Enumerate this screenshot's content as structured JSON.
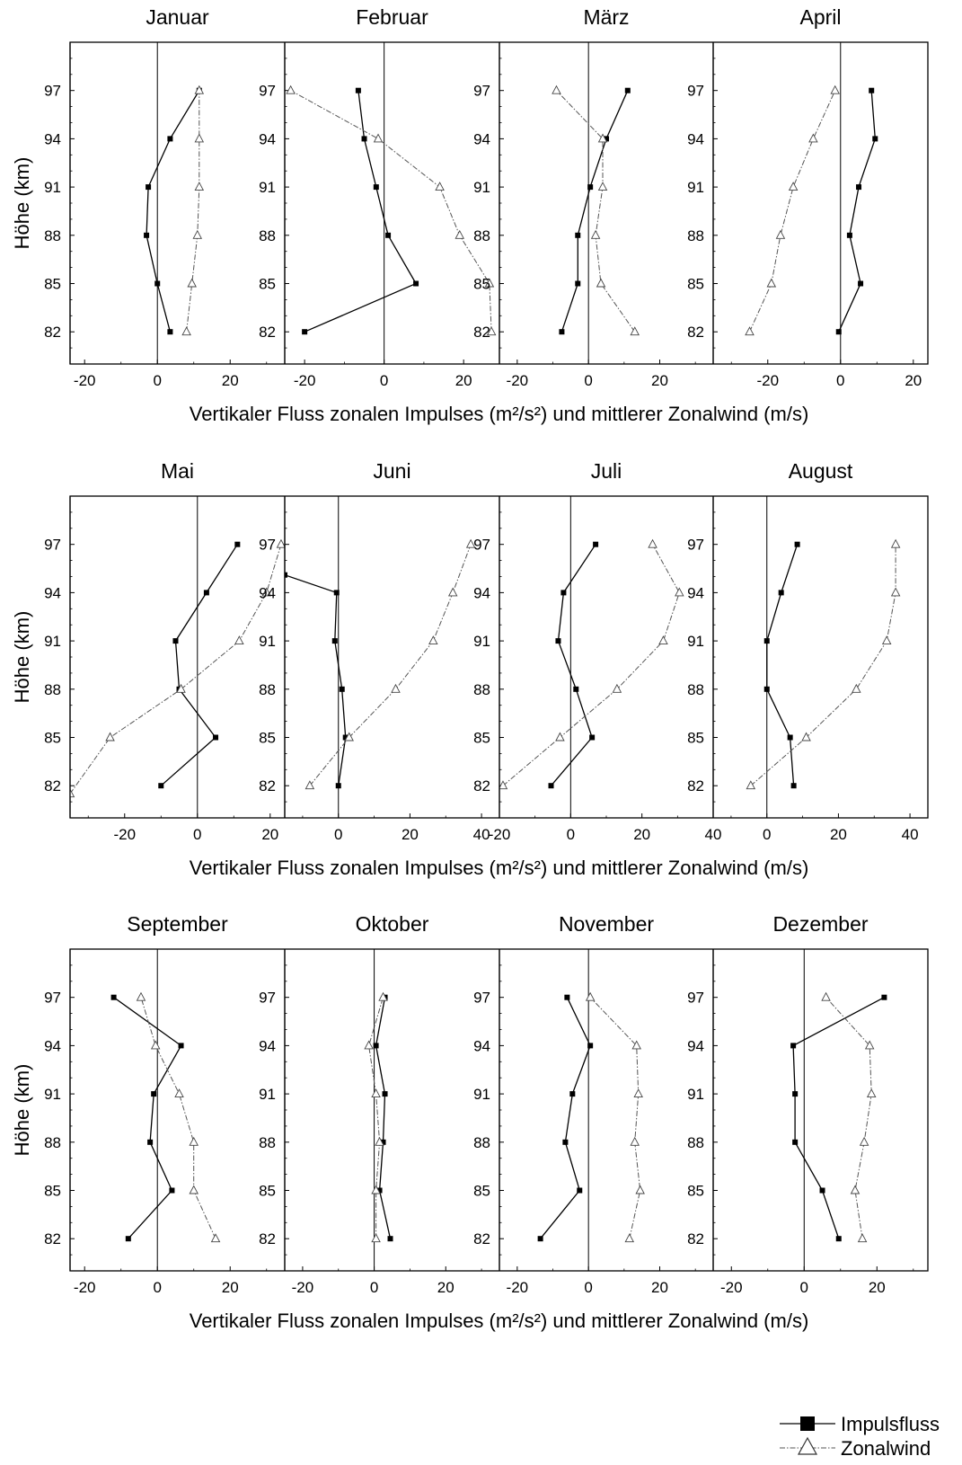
{
  "figure": {
    "legend": {
      "placement": "bottom-right",
      "entries": [
        {
          "name": "Impulsfluss",
          "marker": "filled-square",
          "line": "solid"
        },
        {
          "name": "Zonalwind",
          "marker": "open-triangle",
          "line": "dash-dot"
        }
      ]
    }
  },
  "rows": [
    {
      "xlabel": "Vertikaler Fluss zonalen Impulses (m²/s²) und mittlerer Zonalwind (m/s)",
      "ylabel": "Höhe (km)"
    },
    {
      "xlabel": "Vertikaler Fluss zonalen Impulses (m²/s²) und mittlerer Zonalwind (m/s)",
      "ylabel": "Höhe (km)"
    },
    {
      "xlabel": "Vertikaler Fluss zonalen Impulses (m²/s²) und mittlerer Zonalwind (m/s)",
      "ylabel": "Höhe (km)"
    }
  ],
  "chart_data": [
    {
      "type": "line",
      "title": "Januar",
      "row": 0,
      "col": 0,
      "xlim": [
        -24,
        35
      ],
      "ylim": [
        80,
        100
      ],
      "xticks": [
        -20,
        0,
        20
      ],
      "yticks": [
        82,
        85,
        88,
        91,
        94,
        97
      ],
      "grid": false,
      "series": [
        {
          "name": "Impulsfluss",
          "points": [
            [
              3.5,
              82
            ],
            [
              0,
              85
            ],
            [
              -3,
              88
            ],
            [
              -2.5,
              91
            ],
            [
              3.5,
              94
            ],
            [
              11.5,
              97
            ]
          ]
        },
        {
          "name": "Zonalwind",
          "points": [
            [
              8,
              82
            ],
            [
              9.5,
              85
            ],
            [
              11,
              88
            ],
            [
              11.5,
              91
            ],
            [
              11.5,
              94
            ],
            [
              11.5,
              97
            ]
          ]
        }
      ]
    },
    {
      "type": "line",
      "title": "Februar",
      "row": 0,
      "col": 1,
      "xlim": [
        -25,
        29
      ],
      "ylim": [
        80,
        100
      ],
      "xticks": [
        -20,
        0,
        20
      ],
      "yticks": [
        82,
        85,
        88,
        91,
        94,
        97
      ],
      "grid": false,
      "series": [
        {
          "name": "Impulsfluss",
          "points": [
            [
              -20,
              82
            ],
            [
              8,
              85
            ],
            [
              1,
              88
            ],
            [
              -2,
              91
            ],
            [
              -5,
              94
            ],
            [
              -6.5,
              97
            ]
          ]
        },
        {
          "name": "Zonalwind",
          "points": [
            [
              27,
              82
            ],
            [
              26.5,
              85
            ],
            [
              19,
              88
            ],
            [
              14,
              91
            ],
            [
              -1.5,
              94
            ],
            [
              -23.5,
              97
            ]
          ]
        }
      ]
    },
    {
      "type": "line",
      "title": "März",
      "row": 0,
      "col": 2,
      "xlim": [
        -25,
        35
      ],
      "ylim": [
        80,
        100
      ],
      "xticks": [
        -20,
        0,
        20
      ],
      "yticks": [
        82,
        85,
        88,
        91,
        94,
        97
      ],
      "grid": false,
      "series": [
        {
          "name": "Impulsfluss",
          "points": [
            [
              -7.5,
              82
            ],
            [
              -3,
              85
            ],
            [
              -3,
              88
            ],
            [
              0.5,
              91
            ],
            [
              5,
              94
            ],
            [
              11,
              97
            ]
          ]
        },
        {
          "name": "Zonalwind",
          "points": [
            [
              13,
              82
            ],
            [
              3.5,
              85
            ],
            [
              2,
              88
            ],
            [
              4,
              91
            ],
            [
              4,
              94
            ],
            [
              -9,
              97
            ]
          ]
        }
      ]
    },
    {
      "type": "line",
      "title": "April",
      "row": 0,
      "col": 3,
      "xlim": [
        -35,
        24
      ],
      "ylim": [
        80,
        100
      ],
      "xticks": [
        -20,
        0,
        20
      ],
      "yticks": [
        82,
        85,
        88,
        91,
        94,
        97
      ],
      "grid": false,
      "series": [
        {
          "name": "Impulsfluss",
          "points": [
            [
              -0.5,
              82
            ],
            [
              5.5,
              85
            ],
            [
              2.5,
              88
            ],
            [
              5,
              91
            ],
            [
              9.5,
              94
            ],
            [
              8.5,
              97
            ]
          ]
        },
        {
          "name": "Zonalwind",
          "points": [
            [
              -25,
              82
            ],
            [
              -19,
              85
            ],
            [
              -16.5,
              88
            ],
            [
              -13,
              91
            ],
            [
              -7.5,
              94
            ],
            [
              -1.5,
              97
            ]
          ]
        }
      ]
    },
    {
      "type": "line",
      "title": "Mai",
      "row": 1,
      "col": 0,
      "xlim": [
        -35,
        24
      ],
      "ylim": [
        80,
        100
      ],
      "xticks": [
        -20,
        0,
        20
      ],
      "yticks": [
        82,
        85,
        88,
        91,
        94,
        97
      ],
      "grid": false,
      "series": [
        {
          "name": "Impulsfluss",
          "points": [
            [
              -10,
              82
            ],
            [
              5,
              85
            ],
            [
              -5,
              88
            ],
            [
              -6,
              91
            ],
            [
              2.5,
              94
            ],
            [
              11,
              97
            ]
          ]
        },
        {
          "name": "Zonalwind",
          "points": [
            [
              -35,
              81.5
            ],
            [
              -24,
              85
            ],
            [
              -4.5,
              88
            ],
            [
              11.5,
              91
            ],
            [
              19,
              94
            ],
            [
              23,
              97
            ]
          ]
        }
      ]
    },
    {
      "type": "line",
      "title": "Juni",
      "row": 1,
      "col": 1,
      "xlim": [
        -15,
        45
      ],
      "ylim": [
        80,
        100
      ],
      "xticks": [
        -20,
        0,
        20,
        40
      ],
      "yticks": [
        82,
        85,
        88,
        91,
        94,
        97
      ],
      "grid": false,
      "series": [
        {
          "name": "Impulsfluss",
          "points": [
            [
              0,
              82
            ],
            [
              2,
              85
            ],
            [
              1,
              88
            ],
            [
              -1,
              91
            ],
            [
              -0.5,
              94
            ],
            [
              -15,
              95.1
            ]
          ]
        },
        {
          "name": "Zonalwind",
          "points": [
            [
              -8,
              82
            ],
            [
              3,
              85
            ],
            [
              16,
              88
            ],
            [
              26.5,
              91
            ],
            [
              32,
              94
            ],
            [
              37,
              97
            ]
          ]
        }
      ]
    },
    {
      "type": "line",
      "title": "Juli",
      "row": 1,
      "col": 2,
      "xlim": [
        -20,
        40
      ],
      "ylim": [
        80,
        100
      ],
      "xticks": [
        -20,
        0,
        20,
        40
      ],
      "yticks": [
        82,
        85,
        88,
        91,
        94,
        97
      ],
      "grid": false,
      "series": [
        {
          "name": "Impulsfluss",
          "points": [
            [
              -5.5,
              82
            ],
            [
              6,
              85
            ],
            [
              1.5,
              88
            ],
            [
              -3.5,
              91
            ],
            [
              -2,
              94
            ],
            [
              7,
              97
            ]
          ]
        },
        {
          "name": "Zonalwind",
          "points": [
            [
              -19,
              82
            ],
            [
              -3,
              85
            ],
            [
              13,
              88
            ],
            [
              26,
              91
            ],
            [
              30.5,
              94
            ],
            [
              23,
              97
            ]
          ]
        }
      ]
    },
    {
      "type": "line",
      "title": "August",
      "row": 1,
      "col": 3,
      "xlim": [
        -15,
        45
      ],
      "ylim": [
        80,
        100
      ],
      "xticks": [
        0,
        20,
        40
      ],
      "yticks": [
        82,
        85,
        88,
        91,
        94,
        97
      ],
      "grid": false,
      "series": [
        {
          "name": "Impulsfluss",
          "points": [
            [
              7.5,
              82
            ],
            [
              6.5,
              85
            ],
            [
              0,
              88
            ],
            [
              0,
              91
            ],
            [
              4,
              94
            ],
            [
              8.5,
              97
            ]
          ]
        },
        {
          "name": "Zonalwind",
          "points": [
            [
              -4.5,
              82
            ],
            [
              11,
              85
            ],
            [
              25,
              88
            ],
            [
              33.5,
              91
            ],
            [
              36,
              94
            ],
            [
              36,
              97
            ]
          ]
        }
      ]
    },
    {
      "type": "line",
      "title": "September",
      "row": 2,
      "col": 0,
      "xlim": [
        -24,
        35
      ],
      "ylim": [
        80,
        100
      ],
      "xticks": [
        -20,
        0,
        20
      ],
      "yticks": [
        82,
        85,
        88,
        91,
        94,
        97
      ],
      "grid": false,
      "series": [
        {
          "name": "Impulsfluss",
          "points": [
            [
              -8,
              82
            ],
            [
              4,
              85
            ],
            [
              -2,
              88
            ],
            [
              -1,
              91
            ],
            [
              6.5,
              94
            ],
            [
              -12,
              97
            ]
          ]
        },
        {
          "name": "Zonalwind",
          "points": [
            [
              16,
              82
            ],
            [
              10,
              85
            ],
            [
              10,
              88
            ],
            [
              6,
              91
            ],
            [
              -0.5,
              94
            ],
            [
              -4.5,
              97
            ]
          ]
        }
      ]
    },
    {
      "type": "line",
      "title": "Oktober",
      "row": 2,
      "col": 1,
      "xlim": [
        -25,
        35
      ],
      "ylim": [
        80,
        100
      ],
      "xticks": [
        -20,
        0,
        20
      ],
      "yticks": [
        82,
        85,
        88,
        91,
        94,
        97
      ],
      "grid": false,
      "series": [
        {
          "name": "Impulsfluss",
          "points": [
            [
              4.5,
              82
            ],
            [
              1.5,
              85
            ],
            [
              2.5,
              88
            ],
            [
              3,
              91
            ],
            [
              0.5,
              94
            ],
            [
              3,
              97
            ]
          ]
        },
        {
          "name": "Zonalwind",
          "points": [
            [
              0.5,
              82
            ],
            [
              0.5,
              85
            ],
            [
              1.5,
              88
            ],
            [
              0.5,
              91
            ],
            [
              -1.5,
              94
            ],
            [
              2.5,
              97
            ]
          ]
        }
      ]
    },
    {
      "type": "line",
      "title": "November",
      "row": 2,
      "col": 2,
      "xlim": [
        -25,
        35
      ],
      "ylim": [
        80,
        100
      ],
      "xticks": [
        -20,
        0,
        20
      ],
      "yticks": [
        82,
        85,
        88,
        91,
        94,
        97
      ],
      "grid": false,
      "series": [
        {
          "name": "Impulsfluss",
          "points": [
            [
              -13.5,
              82
            ],
            [
              -2.5,
              85
            ],
            [
              -6.5,
              88
            ],
            [
              -4.5,
              91
            ],
            [
              0.5,
              94
            ],
            [
              -6,
              97
            ]
          ]
        },
        {
          "name": "Zonalwind",
          "points": [
            [
              11.5,
              82
            ],
            [
              14.5,
              85
            ],
            [
              13,
              88
            ],
            [
              14,
              91
            ],
            [
              13.5,
              94
            ],
            [
              0.5,
              97
            ]
          ]
        }
      ]
    },
    {
      "type": "line",
      "title": "Dezember",
      "row": 2,
      "col": 3,
      "xlim": [
        -25,
        34
      ],
      "ylim": [
        80,
        100
      ],
      "xticks": [
        -20,
        0,
        20
      ],
      "yticks": [
        82,
        85,
        88,
        91,
        94,
        97
      ],
      "grid": false,
      "series": [
        {
          "name": "Impulsfluss",
          "points": [
            [
              9.5,
              82
            ],
            [
              5,
              85
            ],
            [
              -2.5,
              88
            ],
            [
              -2.5,
              91
            ],
            [
              -3,
              94
            ],
            [
              22,
              97
            ]
          ]
        },
        {
          "name": "Zonalwind",
          "points": [
            [
              16,
              82
            ],
            [
              14,
              85
            ],
            [
              16.5,
              88
            ],
            [
              18.5,
              91
            ],
            [
              18,
              94
            ],
            [
              6,
              97
            ]
          ]
        }
      ]
    }
  ]
}
